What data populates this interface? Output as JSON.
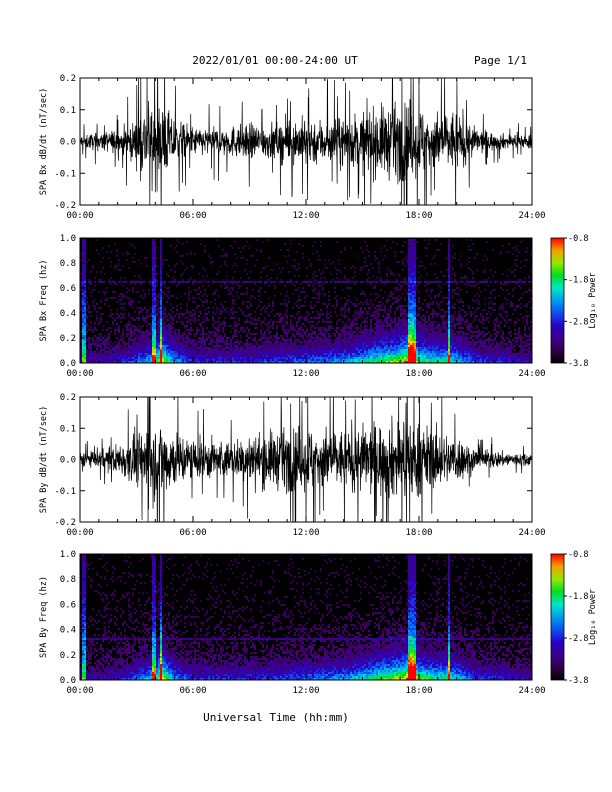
{
  "header": {
    "title": "2022/01/01  00:00-24:00 UT",
    "page": "Page 1/1"
  },
  "footer": {
    "xlabel": "Universal Time (hh:mm)"
  },
  "chart_data": [
    {
      "type": "line",
      "ylabel": "SPA Bx dB/dt (nT/sec)",
      "x_ticks": [
        "00:00",
        "06:00",
        "12:00",
        "18:00",
        "24:00"
      ],
      "xlim": [
        0,
        24
      ],
      "ylim": [
        -0.2,
        0.2
      ],
      "y_ticks": [
        "-0.2",
        "-0.1",
        "0.0",
        "0.1",
        "0.2"
      ],
      "x_unit": "hours UT",
      "envelope": {
        "hours": [
          0,
          1,
          2,
          3,
          3.5,
          4,
          4.5,
          5,
          6,
          7,
          8,
          9,
          10,
          11,
          12,
          13,
          14,
          15,
          16,
          17,
          17.5,
          18,
          19,
          20,
          21,
          22,
          23,
          24
        ],
        "amplitude": [
          0.04,
          0.05,
          0.07,
          0.12,
          0.22,
          0.24,
          0.2,
          0.14,
          0.08,
          0.08,
          0.09,
          0.1,
          0.1,
          0.12,
          0.14,
          0.13,
          0.14,
          0.17,
          0.2,
          0.22,
          0.24,
          0.21,
          0.16,
          0.18,
          0.08,
          0.05,
          0.04,
          0.04
        ]
      },
      "color": "#000000"
    },
    {
      "type": "heatmap",
      "ylabel": "SPA Bx Freq (hz)",
      "x_ticks": [
        "00:00",
        "06:00",
        "12:00",
        "18:00",
        "24:00"
      ],
      "xlim": [
        0,
        24
      ],
      "ylim": [
        0.0,
        1.0
      ],
      "y_ticks": [
        "0.0",
        "0.2",
        "0.4",
        "0.6",
        "0.8",
        "1.0"
      ],
      "colorbar": {
        "label": "Log₁₀ Power",
        "ticks": [
          "-0.8",
          "-1.8",
          "-2.8",
          "-3.8"
        ],
        "range": [
          -3.8,
          -0.8
        ]
      },
      "activity_hours": [
        0,
        2,
        3,
        4,
        4.3,
        5,
        6,
        9,
        12,
        14,
        15,
        16,
        17,
        17.6,
        18,
        19,
        19.5,
        21,
        24
      ],
      "activity_level": [
        0.15,
        0.2,
        0.35,
        0.55,
        0.9,
        0.45,
        0.25,
        0.25,
        0.35,
        0.45,
        0.55,
        0.7,
        0.8,
        1.0,
        0.7,
        0.6,
        0.65,
        0.3,
        0.15
      ],
      "line_hours": [
        0.2,
        3.9,
        4.3,
        17.5,
        17.7,
        19.6
      ],
      "horizontal_line_freq": 0.65
    },
    {
      "type": "line",
      "ylabel": "SPA By dB/dt (nT/sec)",
      "x_ticks": [
        "00:00",
        "06:00",
        "12:00",
        "18:00",
        "24:00"
      ],
      "xlim": [
        0,
        24
      ],
      "ylim": [
        -0.2,
        0.2
      ],
      "y_ticks": [
        "-0.2",
        "-0.1",
        "0.0",
        "0.1",
        "0.2"
      ],
      "x_unit": "hours UT",
      "envelope": {
        "hours": [
          0,
          1,
          2,
          3,
          3.5,
          4,
          4.5,
          5,
          6,
          7,
          8,
          9,
          10,
          11,
          12,
          13,
          14,
          15,
          16,
          17,
          17.5,
          18,
          19,
          20,
          21,
          22,
          23,
          24
        ],
        "amplitude": [
          0.04,
          0.05,
          0.09,
          0.15,
          0.22,
          0.24,
          0.22,
          0.17,
          0.12,
          0.12,
          0.1,
          0.14,
          0.16,
          0.18,
          0.2,
          0.18,
          0.17,
          0.2,
          0.22,
          0.24,
          0.24,
          0.22,
          0.16,
          0.14,
          0.07,
          0.05,
          0.04,
          0.04
        ]
      },
      "color": "#000000"
    },
    {
      "type": "heatmap",
      "ylabel": "SPA By Freq (hz)",
      "x_ticks": [
        "00:00",
        "06:00",
        "12:00",
        "18:00",
        "24:00"
      ],
      "xlim": [
        0,
        24
      ],
      "ylim": [
        0.0,
        1.0
      ],
      "y_ticks": [
        "0.0",
        "0.2",
        "0.4",
        "0.6",
        "0.8",
        "1.0"
      ],
      "colorbar": {
        "label": "Log₁₀ Power",
        "ticks": [
          "-0.8",
          "-1.8",
          "-2.8",
          "-3.8"
        ],
        "range": [
          -3.8,
          -0.8
        ]
      },
      "activity_hours": [
        0,
        2,
        3,
        4,
        4.3,
        5,
        6,
        9,
        12,
        14,
        15,
        16,
        17,
        17.6,
        18,
        19,
        19.5,
        21,
        24
      ],
      "activity_level": [
        0.15,
        0.2,
        0.35,
        0.55,
        0.9,
        0.45,
        0.25,
        0.25,
        0.35,
        0.45,
        0.55,
        0.7,
        0.8,
        1.0,
        0.7,
        0.6,
        0.65,
        0.3,
        0.15
      ],
      "line_hours": [
        0.2,
        3.9,
        4.3,
        17.5,
        17.7,
        19.6
      ],
      "horizontal_line_freq": 0.32
    }
  ]
}
